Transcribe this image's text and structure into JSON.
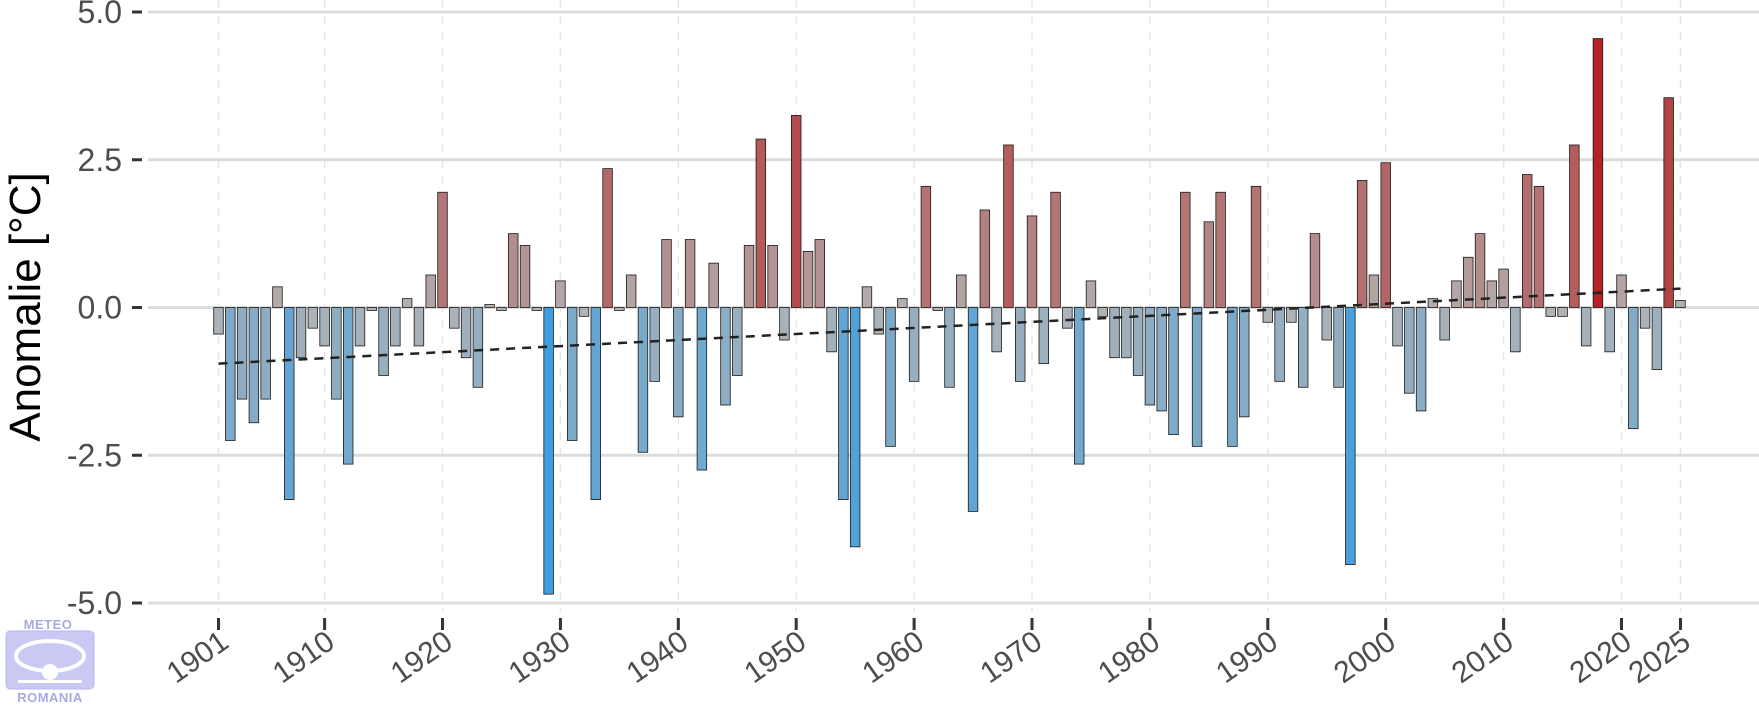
{
  "logo": {
    "top_text": "METEO",
    "bottom_text": "ROMANIA"
  },
  "chart_data": {
    "type": "bar",
    "title": "",
    "xlabel": "",
    "ylabel": "Anomalie [°C]",
    "ylim": [
      -5.0,
      5.0
    ],
    "yticks": [
      "5.0",
      "2.5",
      "0.0",
      "-2.5",
      "-5.0"
    ],
    "ytick_values": [
      5.0,
      2.5,
      0.0,
      -2.5,
      -5.0
    ],
    "xticks": [
      "1901",
      "1910",
      "1920",
      "1930",
      "1940",
      "1950",
      "1960",
      "1970",
      "1980",
      "1990",
      "2000",
      "2010",
      "2020",
      "2025"
    ],
    "xtick_values": [
      1901,
      1910,
      1920,
      1930,
      1940,
      1950,
      1960,
      1970,
      1980,
      1990,
      2000,
      2010,
      2020,
      2025
    ],
    "grid": true,
    "trend": {
      "style": "dashed",
      "color": "#222222",
      "start": {
        "x": 1901,
        "y": -0.95
      },
      "end": {
        "x": 2025,
        "y": 0.32
      }
    },
    "colors": {
      "warm": "#b22222",
      "cold": "#3d9ee0",
      "neutral": "#b4b4b4"
    },
    "categories": [
      1901,
      1902,
      1903,
      1904,
      1905,
      1906,
      1907,
      1908,
      1909,
      1910,
      1911,
      1912,
      1913,
      1914,
      1915,
      1916,
      1917,
      1918,
      1919,
      1920,
      1921,
      1922,
      1923,
      1924,
      1925,
      1926,
      1927,
      1928,
      1929,
      1930,
      1931,
      1932,
      1933,
      1934,
      1935,
      1936,
      1937,
      1938,
      1939,
      1940,
      1941,
      1942,
      1943,
      1944,
      1945,
      1946,
      1947,
      1948,
      1949,
      1950,
      1951,
      1952,
      1953,
      1954,
      1955,
      1956,
      1957,
      1958,
      1959,
      1960,
      1961,
      1962,
      1963,
      1964,
      1965,
      1966,
      1967,
      1968,
      1969,
      1970,
      1971,
      1972,
      1973,
      1974,
      1975,
      1976,
      1977,
      1978,
      1979,
      1980,
      1981,
      1982,
      1983,
      1984,
      1985,
      1986,
      1987,
      1988,
      1989,
      1990,
      1991,
      1992,
      1993,
      1994,
      1995,
      1996,
      1997,
      1998,
      1999,
      2000,
      2001,
      2002,
      2003,
      2004,
      2005,
      2006,
      2007,
      2008,
      2009,
      2010,
      2011,
      2012,
      2013,
      2014,
      2015,
      2016,
      2017,
      2018,
      2019,
      2020,
      2021,
      2022,
      2023,
      2024,
      2025
    ],
    "values": [
      -0.45,
      -2.25,
      -1.55,
      -1.95,
      -1.55,
      0.35,
      -3.25,
      -0.85,
      -0.35,
      -0.65,
      -1.55,
      -2.65,
      -0.65,
      -0.05,
      -1.15,
      -0.65,
      0.15,
      -0.65,
      0.55,
      1.95,
      -0.35,
      -0.85,
      -1.35,
      0.05,
      -0.05,
      1.25,
      1.05,
      -0.05,
      -4.85,
      0.45,
      -2.25,
      -0.15,
      -3.25,
      2.35,
      -0.05,
      0.55,
      -2.45,
      -1.25,
      1.15,
      -1.85,
      1.15,
      -2.75,
      0.75,
      -1.65,
      -1.15,
      1.05,
      2.85,
      1.05,
      -0.55,
      3.25,
      0.95,
      1.15,
      -0.75,
      -3.25,
      -4.05,
      0.35,
      -0.45,
      -2.35,
      0.15,
      -1.25,
      2.05,
      -0.05,
      -1.35,
      0.55,
      -3.45,
      1.65,
      -0.75,
      2.75,
      -1.25,
      1.55,
      -0.95,
      1.95,
      -0.35,
      -2.65,
      0.45,
      -0.15,
      -0.85,
      -0.85,
      -1.15,
      -1.65,
      -1.75,
      -2.15,
      1.95,
      -2.35,
      1.45,
      1.95,
      -2.35,
      -1.85,
      2.05,
      -0.25,
      -1.25,
      -0.25,
      -1.35,
      1.25,
      -0.55,
      -1.35,
      -4.35,
      2.15,
      0.55,
      2.45,
      -0.65,
      -1.45,
      -1.75,
      0.15,
      -0.55,
      0.45,
      0.85,
      1.25,
      0.45,
      0.65,
      -0.75,
      2.25,
      2.05,
      -0.15,
      -0.15,
      2.75,
      -0.65,
      4.55,
      -0.75,
      0.55,
      -2.05,
      -0.35,
      -1.05,
      3.55,
      0.12
    ]
  }
}
